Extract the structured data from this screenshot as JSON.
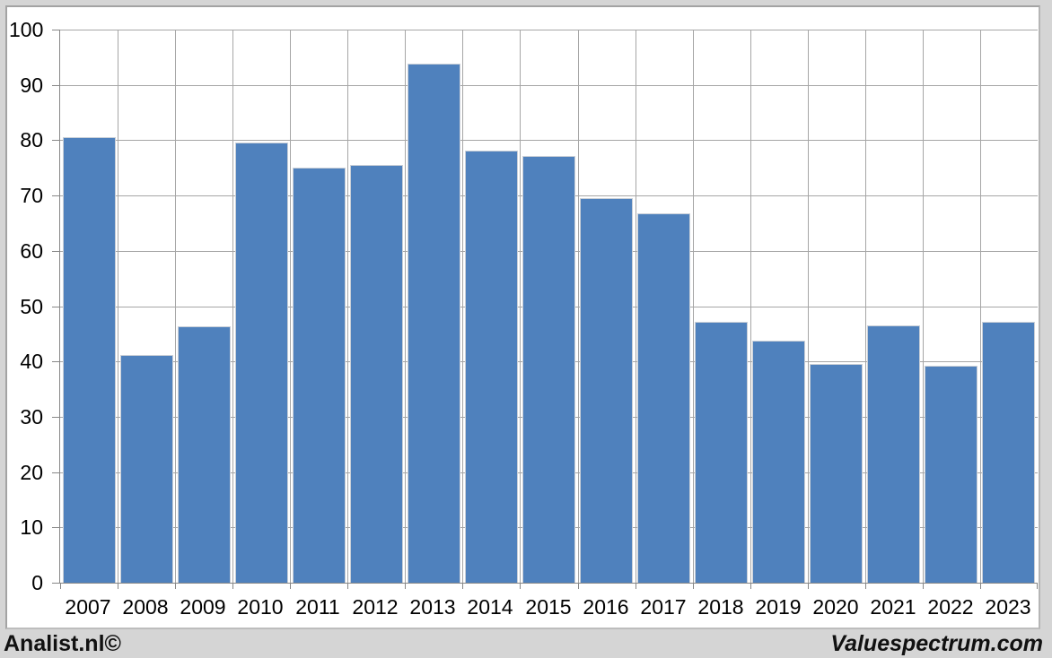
{
  "chart_data": {
    "type": "bar",
    "categories": [
      "2007",
      "2008",
      "2009",
      "2010",
      "2011",
      "2012",
      "2013",
      "2014",
      "2015",
      "2016",
      "2017",
      "2018",
      "2019",
      "2020",
      "2021",
      "2022",
      "2023"
    ],
    "values": [
      80.6,
      41.2,
      46.4,
      79.6,
      75.0,
      75.5,
      93.8,
      78.2,
      77.1,
      69.6,
      66.8,
      47.2,
      43.8,
      39.5,
      46.5,
      39.3,
      47.2
    ],
    "title": "",
    "xlabel": "",
    "ylabel": "",
    "ylim": [
      0,
      100
    ],
    "yticks": [
      0,
      10,
      20,
      30,
      40,
      50,
      60,
      70,
      80,
      90,
      100
    ],
    "grid": true,
    "legend": false,
    "colors": {
      "bar": "#4f81bd",
      "bar_border": "#c9cfd7",
      "gridline": "#a6a6a6",
      "axis": "#878787",
      "page_background": "#d5d5d5",
      "plot_background": "#ffffff",
      "label_text": "#000000"
    }
  },
  "footer": {
    "left": "Analist.nl©",
    "right": "Valuespectrum.com"
  }
}
